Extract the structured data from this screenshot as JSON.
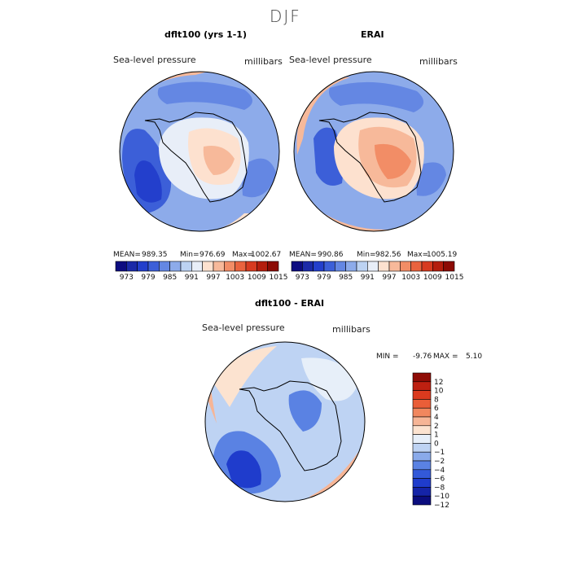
{
  "figure": {
    "title": "DJF"
  },
  "palettes": {
    "absolute": [
      "#0d0c80",
      "#1b2aa8",
      "#233fcc",
      "#3c5fd8",
      "#6487e3",
      "#8dabea",
      "#bcd2f2",
      "#e8eef8",
      "#fde1cf",
      "#f7b99a",
      "#f28d66",
      "#e9633e",
      "#d73b20",
      "#b41e0e",
      "#8c0b05"
    ],
    "difference": [
      "#0b0d7e",
      "#1524a8",
      "#1f3ccc",
      "#3359d9",
      "#5a82e3",
      "#8aaaea",
      "#bed3f3",
      "#e7eff9",
      "#fce3d0",
      "#f6b596",
      "#f1875e",
      "#ea5e38",
      "#db3a1e",
      "#be2011",
      "#8f0c06"
    ]
  },
  "chart_data": [
    {
      "type": "heatmap",
      "projection": "south-polar-stereographic",
      "title": "dflt100 (yrs 1-1)",
      "variable": "Sea-level pressure",
      "units": "millibars",
      "stats": {
        "mean_label": "MEAN=",
        "mean": "989.35",
        "min_label": "Min=",
        "min": "976.69",
        "max_label": "Max=",
        "max": "1002.67"
      },
      "colorbar": {
        "orientation": "horizontal",
        "tick_labels": [
          "973",
          "979",
          "985",
          "991",
          "997",
          "1003",
          "1009",
          "1015"
        ]
      }
    },
    {
      "type": "heatmap",
      "projection": "south-polar-stereographic",
      "title": "ERAI",
      "variable": "Sea-level pressure",
      "units": "millibars",
      "stats": {
        "mean_label": "MEAN=",
        "mean": "990.86",
        "min_label": "Min=",
        "min": "982.56",
        "max_label": "Max=",
        "max": "1005.19"
      },
      "colorbar": {
        "orientation": "horizontal",
        "tick_labels": [
          "973",
          "979",
          "985",
          "991",
          "997",
          "1003",
          "1009",
          "1015"
        ]
      }
    },
    {
      "type": "heatmap",
      "projection": "south-polar-stereographic",
      "title": "dflt100 - ERAI",
      "variable": "Sea-level pressure",
      "units": "millibars",
      "stats": {
        "min_label": "MIN =",
        "min": "-9.76",
        "max_label": "MAX =",
        "max": "5.10"
      },
      "colorbar": {
        "orientation": "vertical",
        "tick_labels": [
          "12",
          "10",
          "8",
          "6",
          "4",
          "2",
          "1",
          "0",
          "−1",
          "−2",
          "−4",
          "−6",
          "−8",
          "−10",
          "−12"
        ]
      }
    }
  ]
}
